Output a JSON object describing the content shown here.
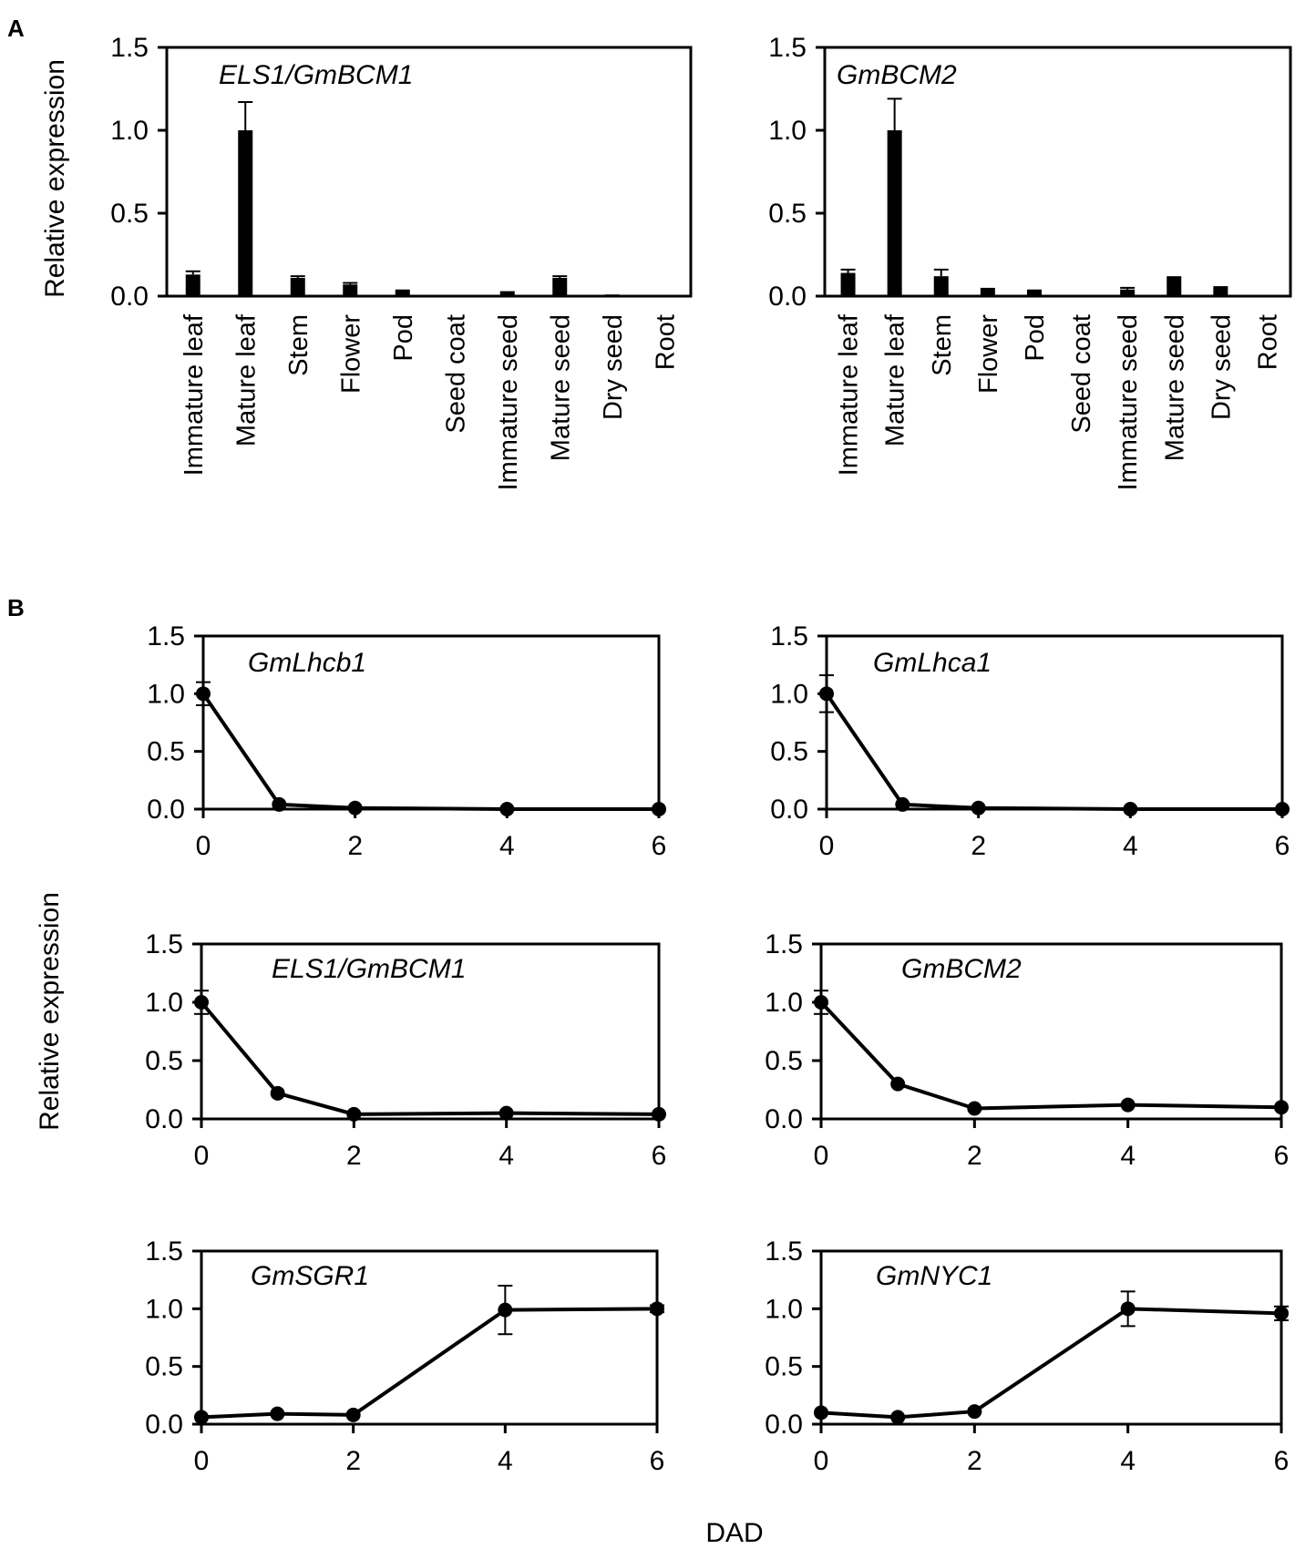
{
  "figure": {
    "panel_a_label": "A",
    "panel_b_label": "B",
    "y_axis_label": "Relative expression",
    "x_axis_label": "DAD",
    "colors": {
      "ink": "#000000",
      "background": "#ffffff"
    }
  },
  "chart_data": [
    {
      "type": "bar",
      "panel": "A",
      "title": "ELS1/GmBCM1",
      "ylabel": "Relative expression",
      "ylim": [
        0,
        1.5
      ],
      "yticks": [
        "0.0",
        "0.5",
        "1.0",
        "1.5"
      ],
      "categories": [
        "Immature leaf",
        "Mature leaf",
        "Stem",
        "Flower",
        "Pod",
        "Seed coat",
        "Immature seed",
        "Mature seed",
        "Dry seed",
        "Root"
      ],
      "values": [
        0.13,
        1.0,
        0.11,
        0.07,
        0.04,
        0.0,
        0.03,
        0.11,
        0.01,
        0.0
      ],
      "errors": [
        0.02,
        0.17,
        0.01,
        0.01,
        0.0,
        0.0,
        0.0,
        0.01,
        0.0,
        0.0
      ]
    },
    {
      "type": "bar",
      "panel": "A",
      "title": "GmBCM2",
      "ylim": [
        0,
        1.5
      ],
      "yticks": [
        "0.0",
        "0.5",
        "1.0",
        "1.5"
      ],
      "categories": [
        "Immature leaf",
        "Mature leaf",
        "Stem",
        "Flower",
        "Pod",
        "Seed coat",
        "Immature seed",
        "Mature seed",
        "Dry seed",
        "Root"
      ],
      "values": [
        0.14,
        1.0,
        0.12,
        0.05,
        0.04,
        0.0,
        0.04,
        0.12,
        0.06,
        0.0
      ],
      "errors": [
        0.02,
        0.19,
        0.04,
        0.0,
        0.0,
        0.0,
        0.01,
        0.0,
        0.0,
        0.0
      ]
    },
    {
      "type": "line",
      "panel": "B",
      "title": "GmLhcb1",
      "ylim": [
        0,
        1.5
      ],
      "yticks": [
        "0.0",
        "0.5",
        "1.0",
        "1.5"
      ],
      "xlim": [
        0,
        6
      ],
      "xticks": [
        "0",
        "2",
        "4",
        "6"
      ],
      "x": [
        0,
        1,
        2,
        4,
        6
      ],
      "y": [
        1.0,
        0.04,
        0.01,
        0.0,
        0.0
      ],
      "errors": [
        0.1,
        0.0,
        0.0,
        0.0,
        0.0
      ]
    },
    {
      "type": "line",
      "panel": "B",
      "title": "GmLhca1",
      "ylim": [
        0,
        1.5
      ],
      "yticks": [
        "0.0",
        "0.5",
        "1.0",
        "1.5"
      ],
      "xlim": [
        0,
        6
      ],
      "xticks": [
        "0",
        "2",
        "4",
        "6"
      ],
      "x": [
        0,
        1,
        2,
        4,
        6
      ],
      "y": [
        1.0,
        0.04,
        0.01,
        0.0,
        0.0
      ],
      "errors": [
        0.16,
        0.0,
        0.0,
        0.0,
        0.0
      ]
    },
    {
      "type": "line",
      "panel": "B",
      "title": "ELS1/GmBCM1",
      "ylim": [
        0,
        1.5
      ],
      "yticks": [
        "0.0",
        "0.5",
        "1.0",
        "1.5"
      ],
      "xlim": [
        0,
        6
      ],
      "xticks": [
        "0",
        "2",
        "4",
        "6"
      ],
      "x": [
        0,
        1,
        2,
        4,
        6
      ],
      "y": [
        1.0,
        0.22,
        0.04,
        0.05,
        0.04
      ],
      "errors": [
        0.1,
        0.0,
        0.0,
        0.0,
        0.0
      ]
    },
    {
      "type": "line",
      "panel": "B",
      "title": "GmBCM2",
      "ylim": [
        0,
        1.5
      ],
      "yticks": [
        "0.0",
        "0.5",
        "1.0",
        "1.5"
      ],
      "xlim": [
        0,
        6
      ],
      "xticks": [
        "0",
        "2",
        "4",
        "6"
      ],
      "x": [
        0,
        1,
        2,
        4,
        6
      ],
      "y": [
        1.0,
        0.3,
        0.09,
        0.12,
        0.1
      ],
      "errors": [
        0.1,
        0.0,
        0.0,
        0.0,
        0.0
      ]
    },
    {
      "type": "line",
      "panel": "B",
      "title": "GmSGR1",
      "ylim": [
        0,
        1.5
      ],
      "yticks": [
        "0.0",
        "0.5",
        "1.0",
        "1.5"
      ],
      "xlim": [
        0,
        6
      ],
      "xticks": [
        "0",
        "2",
        "4",
        "6"
      ],
      "x": [
        0,
        1,
        2,
        4,
        6
      ],
      "y": [
        0.06,
        0.09,
        0.08,
        0.99,
        1.0
      ],
      "errors": [
        0.0,
        0.0,
        0.0,
        0.21,
        0.03
      ]
    },
    {
      "type": "line",
      "panel": "B",
      "title": "GmNYC1",
      "ylim": [
        0,
        1.5
      ],
      "yticks": [
        "0.0",
        "0.5",
        "1.0",
        "1.5"
      ],
      "xlim": [
        0,
        6
      ],
      "xticks": [
        "0",
        "2",
        "4",
        "6"
      ],
      "x": [
        0,
        1,
        2,
        4,
        6
      ],
      "y": [
        0.1,
        0.06,
        0.11,
        1.0,
        0.96
      ],
      "errors": [
        0.0,
        0.0,
        0.0,
        0.15,
        0.06
      ]
    }
  ]
}
